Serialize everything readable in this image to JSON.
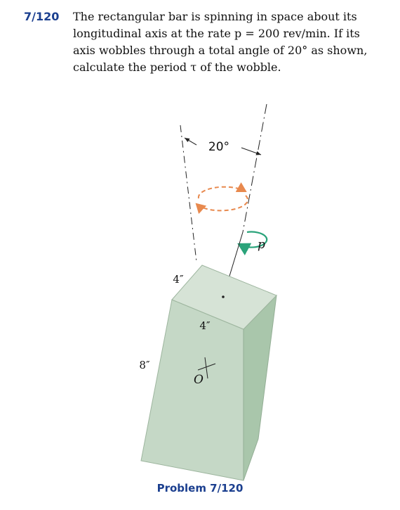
{
  "problem": {
    "number": "7/120",
    "lines": [
      "The rectangular bar is spinning in space about its",
      "longitudinal axis at the rate p = 200 rev/min. If its",
      "axis wobbles through a total angle of 20° as shown,",
      "calculate the period τ of the wobble."
    ]
  },
  "figure": {
    "angle_label": "20°",
    "rate_label": "p",
    "top_width_label": "4″",
    "front_width_label": "4″",
    "height_label": "8″",
    "center_label": "O",
    "colors": {
      "bar_front": "#c5d8c6",
      "bar_top": "#d6e3d6",
      "bar_side": "#a9c6ab",
      "wobble_arrow": "#e8894e",
      "spin_arrow": "#2aa37a"
    }
  },
  "caption": "Problem 7/120"
}
